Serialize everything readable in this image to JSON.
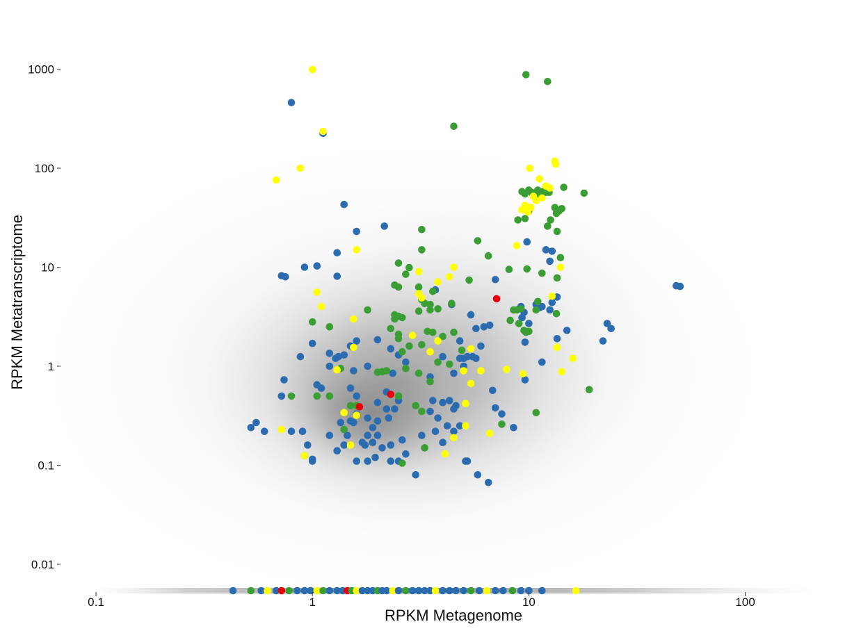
{
  "chart_data": {
    "type": "scatter",
    "xlabel": "RPKM Metagenome",
    "ylabel": "RPKM Metatranscriptome",
    "x_scale": "log",
    "y_scale": "log",
    "xlim": [
      0.1,
      200
    ],
    "ylim": [
      0.0055,
      2000
    ],
    "x_ticks": [
      {
        "value": 0.1,
        "label": "0.1"
      },
      {
        "value": 1,
        "label": "1"
      },
      {
        "value": 10,
        "label": "10"
      },
      {
        "value": 100,
        "label": "100"
      }
    ],
    "y_ticks": [
      {
        "value": 1000,
        "label": "1000"
      },
      {
        "value": 100,
        "label": "100"
      },
      {
        "value": 10,
        "label": "10"
      },
      {
        "value": 1,
        "label": "1"
      },
      {
        "value": 0.1,
        "label": "0.1"
      },
      {
        "value": 0.01,
        "label": "0.01"
      }
    ],
    "grid": false,
    "legend": "none",
    "background_cloud": {
      "color": "#808080",
      "opacity": 0.03,
      "center_x": 1.9,
      "center_y": 0.35,
      "description_of_baseline": "zero-expression genes plotted along bottom"
    },
    "series": [
      {
        "color": "#2b6cb0",
        "points": [
          [
            0.8,
            460
          ],
          [
            1.12,
            225
          ],
          [
            1.4,
            43
          ],
          [
            1.6,
            23
          ],
          [
            2.15,
            26
          ],
          [
            0.92,
            10
          ],
          [
            1.05,
            10.3
          ],
          [
            1.3,
            14
          ],
          [
            1.3,
            8.1
          ],
          [
            0.72,
            8.2
          ],
          [
            0.75,
            8
          ],
          [
            1.0,
            1.7
          ],
          [
            0.88,
            1.25
          ],
          [
            1.2,
            1.35
          ],
          [
            1.28,
            1.2
          ],
          [
            1.32,
            1.25
          ],
          [
            1.2,
            1.0
          ],
          [
            1.4,
            1.3
          ],
          [
            1.5,
            1.6
          ],
          [
            1.6,
            1.8
          ],
          [
            1.8,
            1.0
          ],
          [
            2.0,
            1.85
          ],
          [
            2.3,
            1.5
          ],
          [
            2.5,
            1.3
          ],
          [
            2.35,
            0.85
          ],
          [
            2.2,
            0.55
          ],
          [
            1.55,
            0.9
          ],
          [
            1.5,
            0.6
          ],
          [
            1.6,
            0.5
          ],
          [
            1.05,
            0.65
          ],
          [
            1.1,
            0.6
          ],
          [
            0.74,
            0.73
          ],
          [
            0.72,
            0.5
          ],
          [
            0.52,
            0.24
          ],
          [
            0.55,
            0.27
          ],
          [
            0.6,
            0.22
          ],
          [
            0.8,
            0.22
          ],
          [
            0.9,
            0.22
          ],
          [
            0.95,
            0.16
          ],
          [
            0.92,
            0.125
          ],
          [
            1.0,
            0.115
          ],
          [
            1.0,
            0.11
          ],
          [
            1.2,
            0.2
          ],
          [
            1.3,
            0.14
          ],
          [
            1.35,
            0.27
          ],
          [
            1.4,
            0.16
          ],
          [
            1.45,
            0.2
          ],
          [
            1.5,
            0.28
          ],
          [
            1.55,
            0.27
          ],
          [
            1.6,
            0.33
          ],
          [
            1.7,
            0.17
          ],
          [
            1.75,
            0.16
          ],
          [
            1.8,
            0.2
          ],
          [
            1.9,
            0.17
          ],
          [
            2.0,
            0.2
          ],
          [
            2.0,
            0.28
          ],
          [
            2.1,
            0.15
          ],
          [
            2.3,
            0.16
          ],
          [
            2.3,
            0.11
          ],
          [
            2.5,
            0.11
          ],
          [
            2.6,
            0.18
          ],
          [
            1.6,
            0.11
          ],
          [
            1.8,
            0.11
          ],
          [
            1.95,
            0.12
          ],
          [
            2.25,
            0.3
          ],
          [
            2.5,
            0.45
          ],
          [
            2.7,
            0.13
          ],
          [
            3.0,
            0.08
          ],
          [
            3.2,
            0.2
          ],
          [
            3.5,
            0.35
          ],
          [
            3.6,
            0.45
          ],
          [
            3.8,
            0.3
          ],
          [
            3.7,
            0.22
          ],
          [
            4.0,
            0.43
          ],
          [
            4.3,
            0.45
          ],
          [
            4.2,
            0.25
          ],
          [
            4.0,
            0.17
          ],
          [
            4.5,
            0.37
          ],
          [
            4.5,
            0.22
          ],
          [
            4.6,
            0.4
          ],
          [
            4.8,
            0.25
          ],
          [
            5.1,
            0.11
          ],
          [
            5.2,
            0.11
          ],
          [
            5.8,
            0.08
          ],
          [
            6.5,
            0.067
          ],
          [
            3.5,
            0.78
          ],
          [
            4.0,
            1.25
          ],
          [
            4.5,
            0.85
          ],
          [
            4.8,
            1.2
          ],
          [
            5.0,
            1.2
          ],
          [
            5.2,
            1.25
          ],
          [
            5.0,
            1.0
          ],
          [
            5.5,
            1.25
          ],
          [
            5.7,
            1.2
          ],
          [
            5.7,
            2.4
          ],
          [
            6.2,
            2.5
          ],
          [
            6.6,
            2.6
          ],
          [
            6.0,
            1.6
          ],
          [
            7.0,
            7.5
          ],
          [
            3.7,
            5.9
          ],
          [
            4.4,
            4.2
          ],
          [
            5.4,
            3.3
          ],
          [
            4.8,
            1.8
          ],
          [
            6.8,
            0.57
          ],
          [
            7.0,
            0.38
          ],
          [
            7.5,
            0.33
          ],
          [
            8.5,
            0.24
          ],
          [
            9.2,
            4.0
          ],
          [
            9.5,
            3.5
          ],
          [
            9.3,
            3.1
          ],
          [
            10.0,
            2.7
          ],
          [
            10.8,
            4.2
          ],
          [
            11.2,
            3.9
          ],
          [
            11.5,
            4.0
          ],
          [
            12.5,
            3.7
          ],
          [
            12.8,
            4.4
          ],
          [
            13.5,
            5.0
          ],
          [
            9.6,
            1.75
          ],
          [
            9.6,
            0.73
          ],
          [
            11.5,
            1.1
          ],
          [
            12.0,
            15
          ],
          [
            12.8,
            14.5
          ],
          [
            12.5,
            11.5
          ],
          [
            9.8,
            18
          ],
          [
            13.5,
            1.9
          ],
          [
            22.0,
            1.8
          ],
          [
            23.0,
            2.7
          ],
          [
            24.0,
            2.4
          ],
          [
            48.0,
            6.5
          ],
          [
            50.0,
            6.4
          ],
          [
            15.0,
            2.3
          ],
          [
            2.7,
            1.1
          ],
          [
            2.2,
            0.37
          ],
          [
            2.4,
            0.37
          ],
          [
            2.0,
            0.43
          ],
          [
            1.8,
            0.3
          ],
          [
            1.9,
            0.24
          ]
        ]
      },
      {
        "color": "#3a9e34",
        "points": [
          [
            9.7,
            880
          ],
          [
            12.2,
            750
          ],
          [
            4.5,
            265
          ],
          [
            9.3,
            58
          ],
          [
            9.6,
            55
          ],
          [
            10.0,
            60
          ],
          [
            10.3,
            57
          ],
          [
            10.6,
            55
          ],
          [
            11.0,
            60
          ],
          [
            11.2,
            52
          ],
          [
            11.6,
            58
          ],
          [
            12.0,
            57
          ],
          [
            12.4,
            57
          ],
          [
            13.2,
            40
          ],
          [
            13.4,
            35
          ],
          [
            13.8,
            37
          ],
          [
            14.2,
            39
          ],
          [
            14.5,
            64
          ],
          [
            18.0,
            56
          ],
          [
            9.8,
            40
          ],
          [
            10.0,
            37
          ],
          [
            9.6,
            31
          ],
          [
            8.9,
            30
          ],
          [
            12.6,
            30
          ],
          [
            12.2,
            26
          ],
          [
            13.5,
            23
          ],
          [
            13.5,
            7.8
          ],
          [
            14.0,
            12.5
          ],
          [
            11.5,
            8.7
          ],
          [
            9.8,
            9.6
          ],
          [
            3.2,
            24
          ],
          [
            3.2,
            15
          ],
          [
            2.5,
            11
          ],
          [
            2.5,
            6.3
          ],
          [
            2.4,
            6.6
          ],
          [
            2.7,
            8.5
          ],
          [
            2.8,
            9.9
          ],
          [
            3.1,
            6.3
          ],
          [
            3.2,
            4.7
          ],
          [
            3.3,
            4.3
          ],
          [
            3.5,
            4.2
          ],
          [
            3.5,
            3.7
          ],
          [
            3.8,
            3.8
          ],
          [
            3.1,
            3.6
          ],
          [
            2.4,
            3.3
          ],
          [
            2.5,
            3.2
          ],
          [
            2.6,
            3.1
          ],
          [
            2.4,
            3.0
          ],
          [
            2.3,
            2.4
          ],
          [
            2.5,
            2.1
          ],
          [
            2.5,
            1.9
          ],
          [
            2.8,
            1.6
          ],
          [
            3.2,
            1.65
          ],
          [
            3.4,
            2.25
          ],
          [
            3.6,
            2.2
          ],
          [
            4.5,
            2.2
          ],
          [
            4.0,
            2.0
          ],
          [
            4.4,
            4.3
          ],
          [
            2.6,
            1.4
          ],
          [
            3.8,
            1.1
          ],
          [
            4.3,
            1.05
          ],
          [
            2.7,
            0.95
          ],
          [
            3.1,
            0.85
          ],
          [
            3.5,
            0.7
          ],
          [
            2.5,
            0.5
          ],
          [
            2.2,
            0.9
          ],
          [
            2.1,
            0.88
          ],
          [
            1.8,
            3.7
          ],
          [
            1.0,
            2.8
          ],
          [
            1.2,
            2.5
          ],
          [
            0.8,
            0.5
          ],
          [
            1.05,
            0.5
          ],
          [
            1.2,
            0.5
          ],
          [
            1.35,
            0.95
          ],
          [
            1.6,
            0.4
          ],
          [
            1.5,
            0.4
          ],
          [
            1.4,
            0.23
          ],
          [
            2.0,
            0.87
          ],
          [
            3.0,
            0.4
          ],
          [
            3.2,
            0.35
          ],
          [
            3.3,
            0.15
          ],
          [
            2.6,
            0.105
          ],
          [
            5.3,
            7.4
          ],
          [
            5.8,
            18.5
          ],
          [
            6.5,
            13
          ],
          [
            8.5,
            3.7
          ],
          [
            8.8,
            3.7
          ],
          [
            8.2,
            2.9
          ],
          [
            9.0,
            2.7
          ],
          [
            9.5,
            2.3
          ],
          [
            10.0,
            2.25
          ],
          [
            9.2,
            3.8
          ],
          [
            10.8,
            3.7
          ],
          [
            11.0,
            4.5
          ],
          [
            13.4,
            3.4
          ],
          [
            9.7,
            2.2
          ],
          [
            8.1,
            9.5
          ],
          [
            10.8,
            0.34
          ],
          [
            19.0,
            0.58
          ],
          [
            7.5,
            0.26
          ],
          [
            4.9,
            1.45
          ],
          [
            3.6,
            5.7
          ]
        ]
      },
      {
        "color": "#ffff00",
        "points": [
          [
            1.0,
            990
          ],
          [
            1.12,
            235
          ],
          [
            0.88,
            100
          ],
          [
            0.68,
            76
          ],
          [
            10.1,
            100
          ],
          [
            13.2,
            118
          ],
          [
            13.3,
            110
          ],
          [
            11.2,
            78
          ],
          [
            12.0,
            66
          ],
          [
            11.5,
            50
          ],
          [
            12.5,
            63
          ],
          [
            10.5,
            52
          ],
          [
            10.8,
            47
          ],
          [
            9.6,
            42
          ],
          [
            10.2,
            40
          ],
          [
            9.3,
            38
          ],
          [
            9.9,
            36
          ],
          [
            1.05,
            5.6
          ],
          [
            1.1,
            4.0
          ],
          [
            1.6,
            15
          ],
          [
            1.55,
            3.0
          ],
          [
            1.55,
            1.55
          ],
          [
            1.3,
            0.92
          ],
          [
            1.4,
            0.34
          ],
          [
            1.6,
            0.32
          ],
          [
            1.5,
            0.16
          ],
          [
            0.72,
            0.23
          ],
          [
            0.92,
            0.125
          ],
          [
            3.1,
            9.0
          ],
          [
            3.1,
            5.4
          ],
          [
            3.2,
            4.9
          ],
          [
            2.9,
            2.05
          ],
          [
            3.8,
            1.8
          ],
          [
            3.8,
            7.1
          ],
          [
            4.3,
            8.0
          ],
          [
            4.5,
            10.0
          ],
          [
            5.4,
            1.5
          ],
          [
            5.4,
            0.67
          ],
          [
            5.1,
            0.42
          ],
          [
            5.1,
            0.25
          ],
          [
            4.5,
            0.19
          ],
          [
            4.1,
            0.13
          ],
          [
            5.0,
            0.9
          ],
          [
            6.0,
            0.9
          ],
          [
            6.6,
            0.21
          ],
          [
            7.9,
            0.93
          ],
          [
            9.4,
            0.84
          ],
          [
            8.8,
            16.5
          ],
          [
            12.8,
            5.1
          ],
          [
            13.5,
            1.55
          ],
          [
            14.2,
            0.88
          ],
          [
            16.0,
            1.2
          ],
          [
            14.0,
            10.0
          ],
          [
            3.5,
            1.4
          ]
        ]
      },
      {
        "color": "#e8000a",
        "points": [
          [
            1.65,
            0.39
          ],
          [
            2.3,
            0.52
          ],
          [
            7.1,
            4.8
          ]
        ]
      }
    ],
    "baseline_points_colors": [
      "#2b6cb0",
      "#3a9e34",
      "#ffff00",
      "#e8000a"
    ]
  }
}
